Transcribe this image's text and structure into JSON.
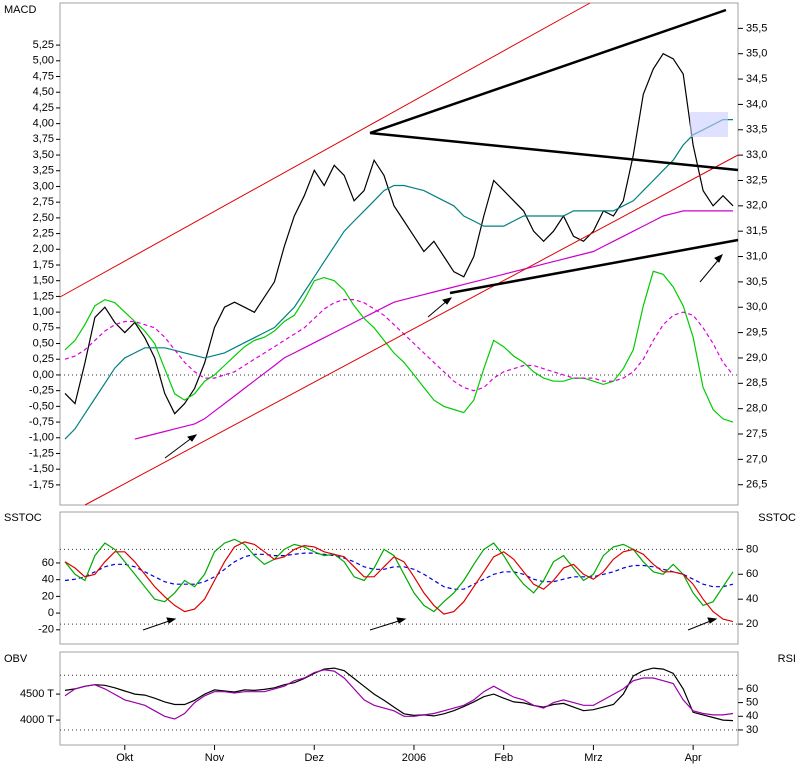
{
  "chart_data": [
    {
      "type": "line",
      "title": "MACD",
      "ylim": [
        -2.07,
        5.92
      ],
      "yticks": [
        {
          "value": -1.75,
          "label": "-1,75"
        },
        {
          "value": -1.5,
          "label": "-1,50"
        },
        {
          "value": -1.25,
          "label": "-1,25"
        },
        {
          "value": -1,
          "label": "-1,00"
        },
        {
          "value": -0.75,
          "label": "-0,75"
        },
        {
          "value": -0.5,
          "label": "-0,50"
        },
        {
          "value": -0.25,
          "label": "-0,25"
        },
        {
          "value": 0,
          "label": "0,00"
        },
        {
          "value": 0.25,
          "label": "0,25"
        },
        {
          "value": 0.5,
          "label": "0,50"
        },
        {
          "value": 0.75,
          "label": "0,75"
        },
        {
          "value": 1,
          "label": "1,00"
        },
        {
          "value": 1.25,
          "label": "1,25"
        },
        {
          "value": 1.5,
          "label": "1,50"
        },
        {
          "value": 1.75,
          "label": "1,75"
        },
        {
          "value": 2,
          "label": "2,00"
        },
        {
          "value": 2.25,
          "label": "2,25"
        },
        {
          "value": 2.5,
          "label": "2,50"
        },
        {
          "value": 2.75,
          "label": "2,75"
        },
        {
          "value": 3,
          "label": "3,00"
        },
        {
          "value": 3.25,
          "label": "3,25"
        },
        {
          "value": 3.5,
          "label": "3,50"
        },
        {
          "value": 3.75,
          "label": "3,75"
        },
        {
          "value": 4,
          "label": "4,00"
        },
        {
          "value": 4.25,
          "label": "4,25"
        },
        {
          "value": 4.5,
          "label": "4,50"
        },
        {
          "value": 4.75,
          "label": "4,75"
        },
        {
          "value": 5,
          "label": "5,00"
        },
        {
          "value": 5.25,
          "label": "5,25"
        }
      ],
      "y2lim": [
        26.1,
        36.0
      ],
      "y2ticks": [
        {
          "value": 26.5,
          "label": "26,5"
        },
        {
          "value": 27,
          "label": "27,0"
        },
        {
          "value": 27.5,
          "label": "27,5"
        },
        {
          "value": 28,
          "label": "28,0"
        },
        {
          "value": 28.5,
          "label": "28,5"
        },
        {
          "value": 29,
          "label": "29,0"
        },
        {
          "value": 29.5,
          "label": "29,5"
        },
        {
          "value": 30,
          "label": "30,0"
        },
        {
          "value": 30.5,
          "label": "30,5"
        },
        {
          "value": 31,
          "label": "31,0"
        },
        {
          "value": 31.5,
          "label": "31,5"
        },
        {
          "value": 32,
          "label": "32,0"
        },
        {
          "value": 32.5,
          "label": "32,5"
        },
        {
          "value": 33,
          "label": "33,0"
        },
        {
          "value": 33.5,
          "label": "33,5"
        },
        {
          "value": 34,
          "label": "34,0"
        },
        {
          "value": 34.5,
          "label": "34,5"
        },
        {
          "value": 35,
          "label": "35,0"
        },
        {
          "value": 35.5,
          "label": "35,5"
        }
      ],
      "ref_lines": [
        0
      ],
      "series": [
        {
          "color": "#000000",
          "axis": "y2",
          "values": [
            28.3,
            28.1,
            28.9,
            29.8,
            30.0,
            29.7,
            29.5,
            29.7,
            29.4,
            29.0,
            28.3,
            27.9,
            28.1,
            28.4,
            28.9,
            29.6,
            30.0,
            30.1,
            30.0,
            29.9,
            30.2,
            30.5,
            31.2,
            31.8,
            32.2,
            32.7,
            32.4,
            32.8,
            32.6,
            32.1,
            32.3,
            32.9,
            32.6,
            32.0,
            31.7,
            31.4,
            31.1,
            31.3,
            31.0,
            30.7,
            30.6,
            31.0,
            31.8,
            32.5,
            32.3,
            32.1,
            31.9,
            31.5,
            31.3,
            31.5,
            31.8,
            31.4,
            31.3,
            31.5,
            31.9,
            31.8,
            32.1,
            33.0,
            34.2,
            34.7,
            35.0,
            34.9,
            34.6,
            33.2,
            32.3,
            32.0,
            32.2,
            32.0
          ]
        },
        {
          "color": "#008080",
          "axis": "y2",
          "values": [
            27.4,
            27.6,
            27.9,
            28.2,
            28.5,
            28.8,
            29.0,
            29.1,
            29.2,
            29.2,
            29.2,
            29.15,
            29.1,
            29.05,
            29.0,
            29.05,
            29.1,
            29.2,
            29.3,
            29.4,
            29.5,
            29.6,
            29.8,
            30.0,
            30.3,
            30.6,
            30.9,
            31.2,
            31.5,
            31.7,
            31.9,
            32.1,
            32.3,
            32.4,
            32.4,
            32.35,
            32.3,
            32.2,
            32.1,
            32.0,
            31.8,
            31.7,
            31.6,
            31.6,
            31.6,
            31.7,
            31.8,
            31.8,
            31.8,
            31.8,
            31.8,
            31.9,
            31.9,
            31.9,
            31.9,
            31.9,
            32.0,
            32.1,
            32.3,
            32.5,
            32.7,
            32.9,
            33.2,
            33.4,
            33.5,
            33.6,
            33.7,
            33.7
          ]
        },
        {
          "color": "#cc00cc",
          "axis": "y2",
          "values": [
            null,
            null,
            null,
            null,
            null,
            null,
            null,
            27.4,
            27.45,
            27.5,
            27.55,
            27.6,
            27.65,
            27.7,
            27.8,
            27.95,
            28.1,
            28.25,
            28.4,
            28.55,
            28.7,
            28.85,
            29.0,
            29.1,
            29.2,
            29.3,
            29.4,
            29.5,
            29.6,
            29.7,
            29.8,
            29.9,
            30.0,
            30.1,
            30.15,
            30.2,
            30.25,
            30.3,
            30.35,
            30.4,
            30.45,
            30.5,
            30.55,
            30.6,
            30.65,
            30.7,
            30.75,
            30.8,
            30.85,
            30.9,
            30.95,
            31.0,
            31.05,
            31.1,
            31.2,
            31.3,
            31.4,
            31.5,
            31.6,
            31.7,
            31.8,
            31.85,
            31.9,
            31.9,
            31.9,
            31.9,
            31.9,
            31.9
          ]
        },
        {
          "color": "#00cc00",
          "values": [
            0.4,
            0.55,
            0.8,
            1.1,
            1.2,
            1.15,
            1.0,
            0.85,
            0.7,
            0.5,
            0.1,
            -0.3,
            -0.4,
            -0.3,
            -0.1,
            0.0,
            0.15,
            0.3,
            0.45,
            0.55,
            0.6,
            0.7,
            0.85,
            0.95,
            1.2,
            1.5,
            1.55,
            1.5,
            1.35,
            1.1,
            0.9,
            0.75,
            0.55,
            0.35,
            0.2,
            0.0,
            -0.2,
            -0.4,
            -0.5,
            -0.55,
            -0.6,
            -0.4,
            0.1,
            0.55,
            0.45,
            0.3,
            0.2,
            0.05,
            -0.05,
            -0.1,
            -0.1,
            -0.05,
            -0.05,
            -0.1,
            -0.15,
            -0.1,
            0.1,
            0.4,
            1.1,
            1.65,
            1.6,
            1.4,
            1.1,
            0.6,
            -0.2,
            -0.55,
            -0.7,
            -0.75
          ]
        },
        {
          "color": "#dd00dd",
          "dashed": true,
          "values": [
            0.25,
            0.3,
            0.4,
            0.55,
            0.7,
            0.8,
            0.85,
            0.85,
            0.8,
            0.75,
            0.6,
            0.4,
            0.2,
            0.05,
            -0.05,
            -0.05,
            0.0,
            0.05,
            0.15,
            0.25,
            0.35,
            0.45,
            0.55,
            0.65,
            0.75,
            0.9,
            1.05,
            1.15,
            1.2,
            1.2,
            1.15,
            1.05,
            0.95,
            0.8,
            0.65,
            0.5,
            0.35,
            0.2,
            0.05,
            -0.1,
            -0.2,
            -0.25,
            -0.2,
            -0.05,
            0.05,
            0.1,
            0.15,
            0.15,
            0.1,
            0.05,
            0.0,
            -0.05,
            -0.05,
            -0.05,
            -0.1,
            -0.1,
            -0.05,
            0.05,
            0.25,
            0.55,
            0.8,
            0.95,
            1.0,
            0.95,
            0.75,
            0.5,
            0.2,
            0.0
          ]
        }
      ]
    },
    {
      "type": "line",
      "title": "SSTOC",
      "y2_title": "SSTOC",
      "ylim": [
        -37,
        121
      ],
      "yticks": [
        -20,
        0,
        20,
        40,
        60
      ],
      "y2lim": [
        4,
        110
      ],
      "y2ticks": [
        20,
        40,
        60,
        80
      ],
      "ref_lines_y2": [
        80,
        20
      ],
      "series": [
        {
          "color": "#0000dd",
          "axis": "y2",
          "dashed": true,
          "values": [
            55,
            56,
            58,
            62,
            66,
            68,
            68,
            66,
            62,
            58,
            54,
            52,
            52,
            52,
            54,
            58,
            64,
            70,
            74,
            76,
            76,
            75,
            75,
            76,
            77,
            77,
            76,
            75,
            73,
            70,
            66,
            64,
            64,
            66,
            66,
            64,
            60,
            55,
            50,
            48,
            48,
            52,
            56,
            60,
            62,
            62,
            60,
            56,
            54,
            54,
            56,
            58,
            58,
            58,
            60,
            62,
            65,
            67,
            67,
            66,
            64,
            62,
            60,
            56,
            52,
            50,
            50,
            52
          ]
        },
        {
          "color": "#00aa00",
          "axis": "y2",
          "values": [
            70,
            60,
            55,
            75,
            85,
            80,
            70,
            60,
            50,
            40,
            38,
            45,
            55,
            50,
            60,
            78,
            85,
            88,
            84,
            75,
            68,
            72,
            80,
            84,
            82,
            78,
            75,
            76,
            70,
            58,
            55,
            65,
            80,
            75,
            60,
            45,
            35,
            30,
            38,
            45,
            55,
            68,
            80,
            85,
            75,
            62,
            52,
            45,
            55,
            70,
            75,
            65,
            55,
            60,
            75,
            82,
            84,
            80,
            70,
            62,
            60,
            68,
            60,
            45,
            35,
            38,
            50,
            62
          ]
        },
        {
          "color": "#dd0000",
          "axis": "y2",
          "values": [
            70,
            65,
            58,
            60,
            70,
            78,
            78,
            70,
            60,
            50,
            42,
            35,
            30,
            32,
            40,
            55,
            70,
            82,
            86,
            84,
            78,
            72,
            74,
            80,
            83,
            82,
            78,
            76,
            74,
            66,
            58,
            58,
            66,
            74,
            70,
            58,
            45,
            35,
            28,
            30,
            38,
            50,
            62,
            74,
            78,
            72,
            62,
            52,
            48,
            55,
            65,
            68,
            60,
            56,
            62,
            72,
            78,
            80,
            76,
            68,
            62,
            62,
            60,
            52,
            40,
            30,
            24,
            22
          ]
        }
      ]
    },
    {
      "type": "line",
      "title": "OBV",
      "y2_title": "RSI",
      "categories": [
        null,
        null,
        null,
        null,
        null,
        null,
        "Okt",
        null,
        null,
        null,
        null,
        null,
        null,
        null,
        null,
        "Nov",
        null,
        null,
        null,
        null,
        null,
        null,
        null,
        null,
        null,
        "Dez",
        null,
        null,
        null,
        null,
        null,
        null,
        null,
        null,
        null,
        "2006",
        null,
        null,
        null,
        null,
        null,
        null,
        null,
        null,
        "Feb",
        null,
        null,
        null,
        null,
        null,
        null,
        null,
        null,
        "Mrz",
        null,
        null,
        null,
        null,
        null,
        null,
        null,
        null,
        null,
        "Apr",
        null,
        null,
        null,
        null
      ],
      "ylim": [
        3520,
        5310
      ],
      "yticks": [
        {
          "value": 4000,
          "label": "4000 T"
        },
        {
          "value": 4500,
          "label": "4500 T"
        }
      ],
      "y2lim": [
        19,
        87
      ],
      "y2ticks": [
        30,
        40,
        50,
        60
      ],
      "ref_lines_y2": [
        70,
        30
      ],
      "series": [
        {
          "color": "#000000",
          "values": [
            4570,
            4600,
            4650,
            4680,
            4670,
            4620,
            4560,
            4500,
            4480,
            4420,
            4350,
            4300,
            4300,
            4380,
            4500,
            4580,
            4560,
            4540,
            4580,
            4570,
            4590,
            4620,
            4680,
            4720,
            4800,
            4900,
            4980,
            5000,
            4950,
            4800,
            4650,
            4500,
            4380,
            4250,
            4120,
            4090,
            4100,
            4080,
            4120,
            4180,
            4260,
            4350,
            4450,
            4500,
            4420,
            4350,
            4330,
            4280,
            4250,
            4300,
            4320,
            4250,
            4180,
            4200,
            4250,
            4300,
            4500,
            4850,
            4950,
            5000,
            4980,
            4900,
            4600,
            4150,
            4100,
            4050,
            4000,
            3990
          ]
        },
        {
          "color": "#9900aa",
          "axis": "y2",
          "values": [
            55,
            60,
            62,
            63,
            60,
            56,
            52,
            50,
            48,
            44,
            40,
            38,
            42,
            50,
            55,
            58,
            58,
            57,
            58,
            58,
            58,
            60,
            62,
            66,
            68,
            72,
            74,
            73,
            68,
            60,
            52,
            48,
            46,
            44,
            40,
            40,
            41,
            42,
            44,
            46,
            48,
            52,
            58,
            62,
            58,
            54,
            52,
            48,
            46,
            50,
            52,
            50,
            48,
            48,
            52,
            56,
            60,
            66,
            68,
            68,
            66,
            64,
            52,
            44,
            42,
            41,
            41,
            42
          ]
        }
      ]
    }
  ]
}
